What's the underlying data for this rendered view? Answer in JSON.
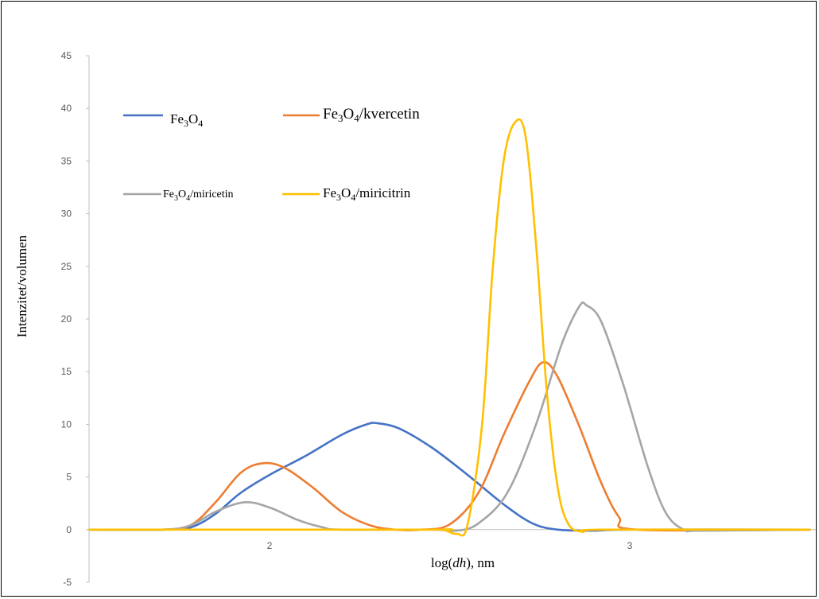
{
  "chart_data": {
    "type": "line",
    "title": "",
    "xlabel": "log(dh), nm",
    "xlabel_parts": {
      "prefix": "log(",
      "italic": "dh",
      "suffix": "), nm"
    },
    "ylabel": "Intenzitet/volumen",
    "ylim": [
      -5,
      45
    ],
    "yticks": [
      -5,
      0,
      5,
      10,
      15,
      20,
      25,
      30,
      35,
      40,
      45
    ],
    "xlim": [
      1.5,
      3.5
    ],
    "xticks": [
      2,
      3
    ],
    "grid": false,
    "legend_position": "top-left",
    "series": [
      {
        "name": "Fe3O4",
        "label_parts": {
          "a": "Fe",
          "s1": "3",
          "b": "O",
          "s2": "4",
          "rest": ""
        },
        "color": "#4472C4",
        "points": [
          [
            1.5,
            0
          ],
          [
            1.7,
            0
          ],
          [
            1.78,
            0.2
          ],
          [
            1.85,
            1.5
          ],
          [
            1.92,
            3.5
          ],
          [
            2.0,
            5.2
          ],
          [
            2.1,
            7.0
          ],
          [
            2.2,
            9.0
          ],
          [
            2.27,
            10.0
          ],
          [
            2.3,
            10.1
          ],
          [
            2.36,
            9.6
          ],
          [
            2.45,
            7.8
          ],
          [
            2.55,
            5.2
          ],
          [
            2.65,
            2.4
          ],
          [
            2.73,
            0.6
          ],
          [
            2.8,
            0
          ],
          [
            2.9,
            -0.1
          ],
          [
            3.0,
            0
          ],
          [
            3.5,
            0
          ]
        ]
      },
      {
        "name": "Fe3O4/kvercetin",
        "label_parts": {
          "a": "Fe",
          "s1": "3",
          "b": "O",
          "s2": "4",
          "rest": "/kvercetin"
        },
        "color": "#ED7D31",
        "points": [
          [
            1.5,
            0
          ],
          [
            1.7,
            0
          ],
          [
            1.78,
            0.4
          ],
          [
            1.85,
            2.6
          ],
          [
            1.92,
            5.4
          ],
          [
            1.98,
            6.3
          ],
          [
            2.04,
            5.9
          ],
          [
            2.12,
            4.0
          ],
          [
            2.2,
            1.7
          ],
          [
            2.28,
            0.4
          ],
          [
            2.35,
            0
          ],
          [
            2.42,
            0
          ],
          [
            2.5,
            0.5
          ],
          [
            2.58,
            3.5
          ],
          [
            2.65,
            9.0
          ],
          [
            2.72,
            14.0
          ],
          [
            2.76,
            15.9
          ],
          [
            2.8,
            14.5
          ],
          [
            2.86,
            9.8
          ],
          [
            2.92,
            4.5
          ],
          [
            2.97,
            1.2
          ],
          [
            3.02,
            0
          ],
          [
            3.5,
            0
          ]
        ]
      },
      {
        "name": "Fe3O4/miricetin",
        "label_parts": {
          "a": "Fe",
          "s1": "3",
          "b": "O",
          "s2": "4",
          "rest": "/miricetin"
        },
        "color": "#A5A5A5",
        "points": [
          [
            1.5,
            0
          ],
          [
            1.7,
            0
          ],
          [
            1.78,
            0.4
          ],
          [
            1.85,
            1.7
          ],
          [
            1.93,
            2.6
          ],
          [
            2.0,
            2.1
          ],
          [
            2.08,
            0.9
          ],
          [
            2.15,
            0.2
          ],
          [
            2.2,
            0
          ],
          [
            2.45,
            0
          ],
          [
            2.52,
            -0.1
          ],
          [
            2.58,
            0.6
          ],
          [
            2.66,
            3.5
          ],
          [
            2.74,
            10.0
          ],
          [
            2.81,
            17.5
          ],
          [
            2.86,
            21.2
          ],
          [
            2.88,
            21.3
          ],
          [
            2.92,
            19.8
          ],
          [
            2.98,
            14.0
          ],
          [
            3.05,
            6.0
          ],
          [
            3.1,
            1.6
          ],
          [
            3.15,
            0
          ],
          [
            3.2,
            -0.1
          ],
          [
            3.5,
            0
          ]
        ]
      },
      {
        "name": "Fe3O4/miricitrin",
        "label_parts": {
          "a": "Fe",
          "s1": "3",
          "b": "O",
          "s2": "4",
          "rest": "/miricitrin"
        },
        "color": "#FFC000",
        "points": [
          [
            1.5,
            0
          ],
          [
            2.42,
            0
          ],
          [
            2.48,
            0
          ],
          [
            2.52,
            -0.4
          ],
          [
            2.55,
            0.5
          ],
          [
            2.59,
            10.0
          ],
          [
            2.62,
            25.0
          ],
          [
            2.65,
            35.0
          ],
          [
            2.68,
            38.6
          ],
          [
            2.71,
            37.5
          ],
          [
            2.74,
            27.0
          ],
          [
            2.77,
            13.0
          ],
          [
            2.8,
            4.0
          ],
          [
            2.83,
            0.5
          ],
          [
            2.87,
            -0.2
          ],
          [
            2.92,
            0
          ],
          [
            3.5,
            0
          ]
        ]
      }
    ]
  }
}
